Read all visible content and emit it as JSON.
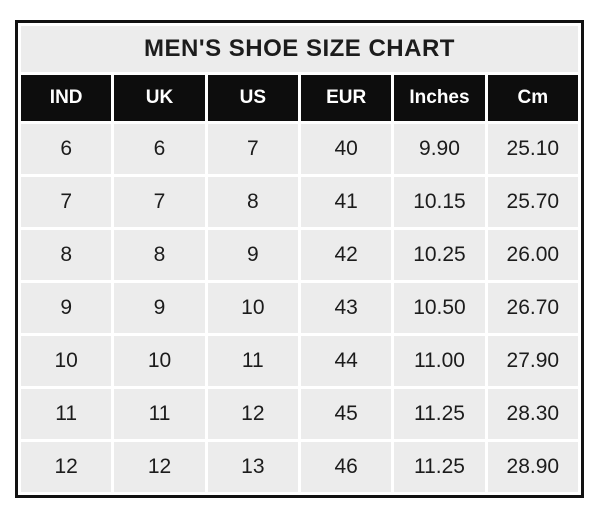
{
  "title": "MEN'S SHOE SIZE CHART",
  "chart_data": {
    "type": "table",
    "title": "MEN'S SHOE SIZE CHART",
    "columns": [
      "IND",
      "UK",
      "US",
      "EUR",
      "Inches",
      "Cm"
    ],
    "rows": [
      [
        "6",
        "6",
        "7",
        "40",
        "9.90",
        "25.10"
      ],
      [
        "7",
        "7",
        "8",
        "41",
        "10.15",
        "25.70"
      ],
      [
        "8",
        "8",
        "9",
        "42",
        "10.25",
        "26.00"
      ],
      [
        "9",
        "9",
        "10",
        "43",
        "10.50",
        "26.70"
      ],
      [
        "10",
        "10",
        "11",
        "44",
        "11.00",
        "27.90"
      ],
      [
        "11",
        "11",
        "12",
        "45",
        "11.25",
        "28.30"
      ],
      [
        "12",
        "12",
        "13",
        "46",
        "11.25",
        "28.90"
      ]
    ]
  },
  "colors": {
    "page_bg": "#ffffff",
    "outer_border": "#111111",
    "title_bg": "#ececec",
    "title_text": "#1c1c1c",
    "header_bg": "#0d0d0d",
    "header_text": "#ffffff",
    "cell_bg": "#ececec",
    "cell_text": "#1c1c1c",
    "gridline": "#ffffff"
  }
}
